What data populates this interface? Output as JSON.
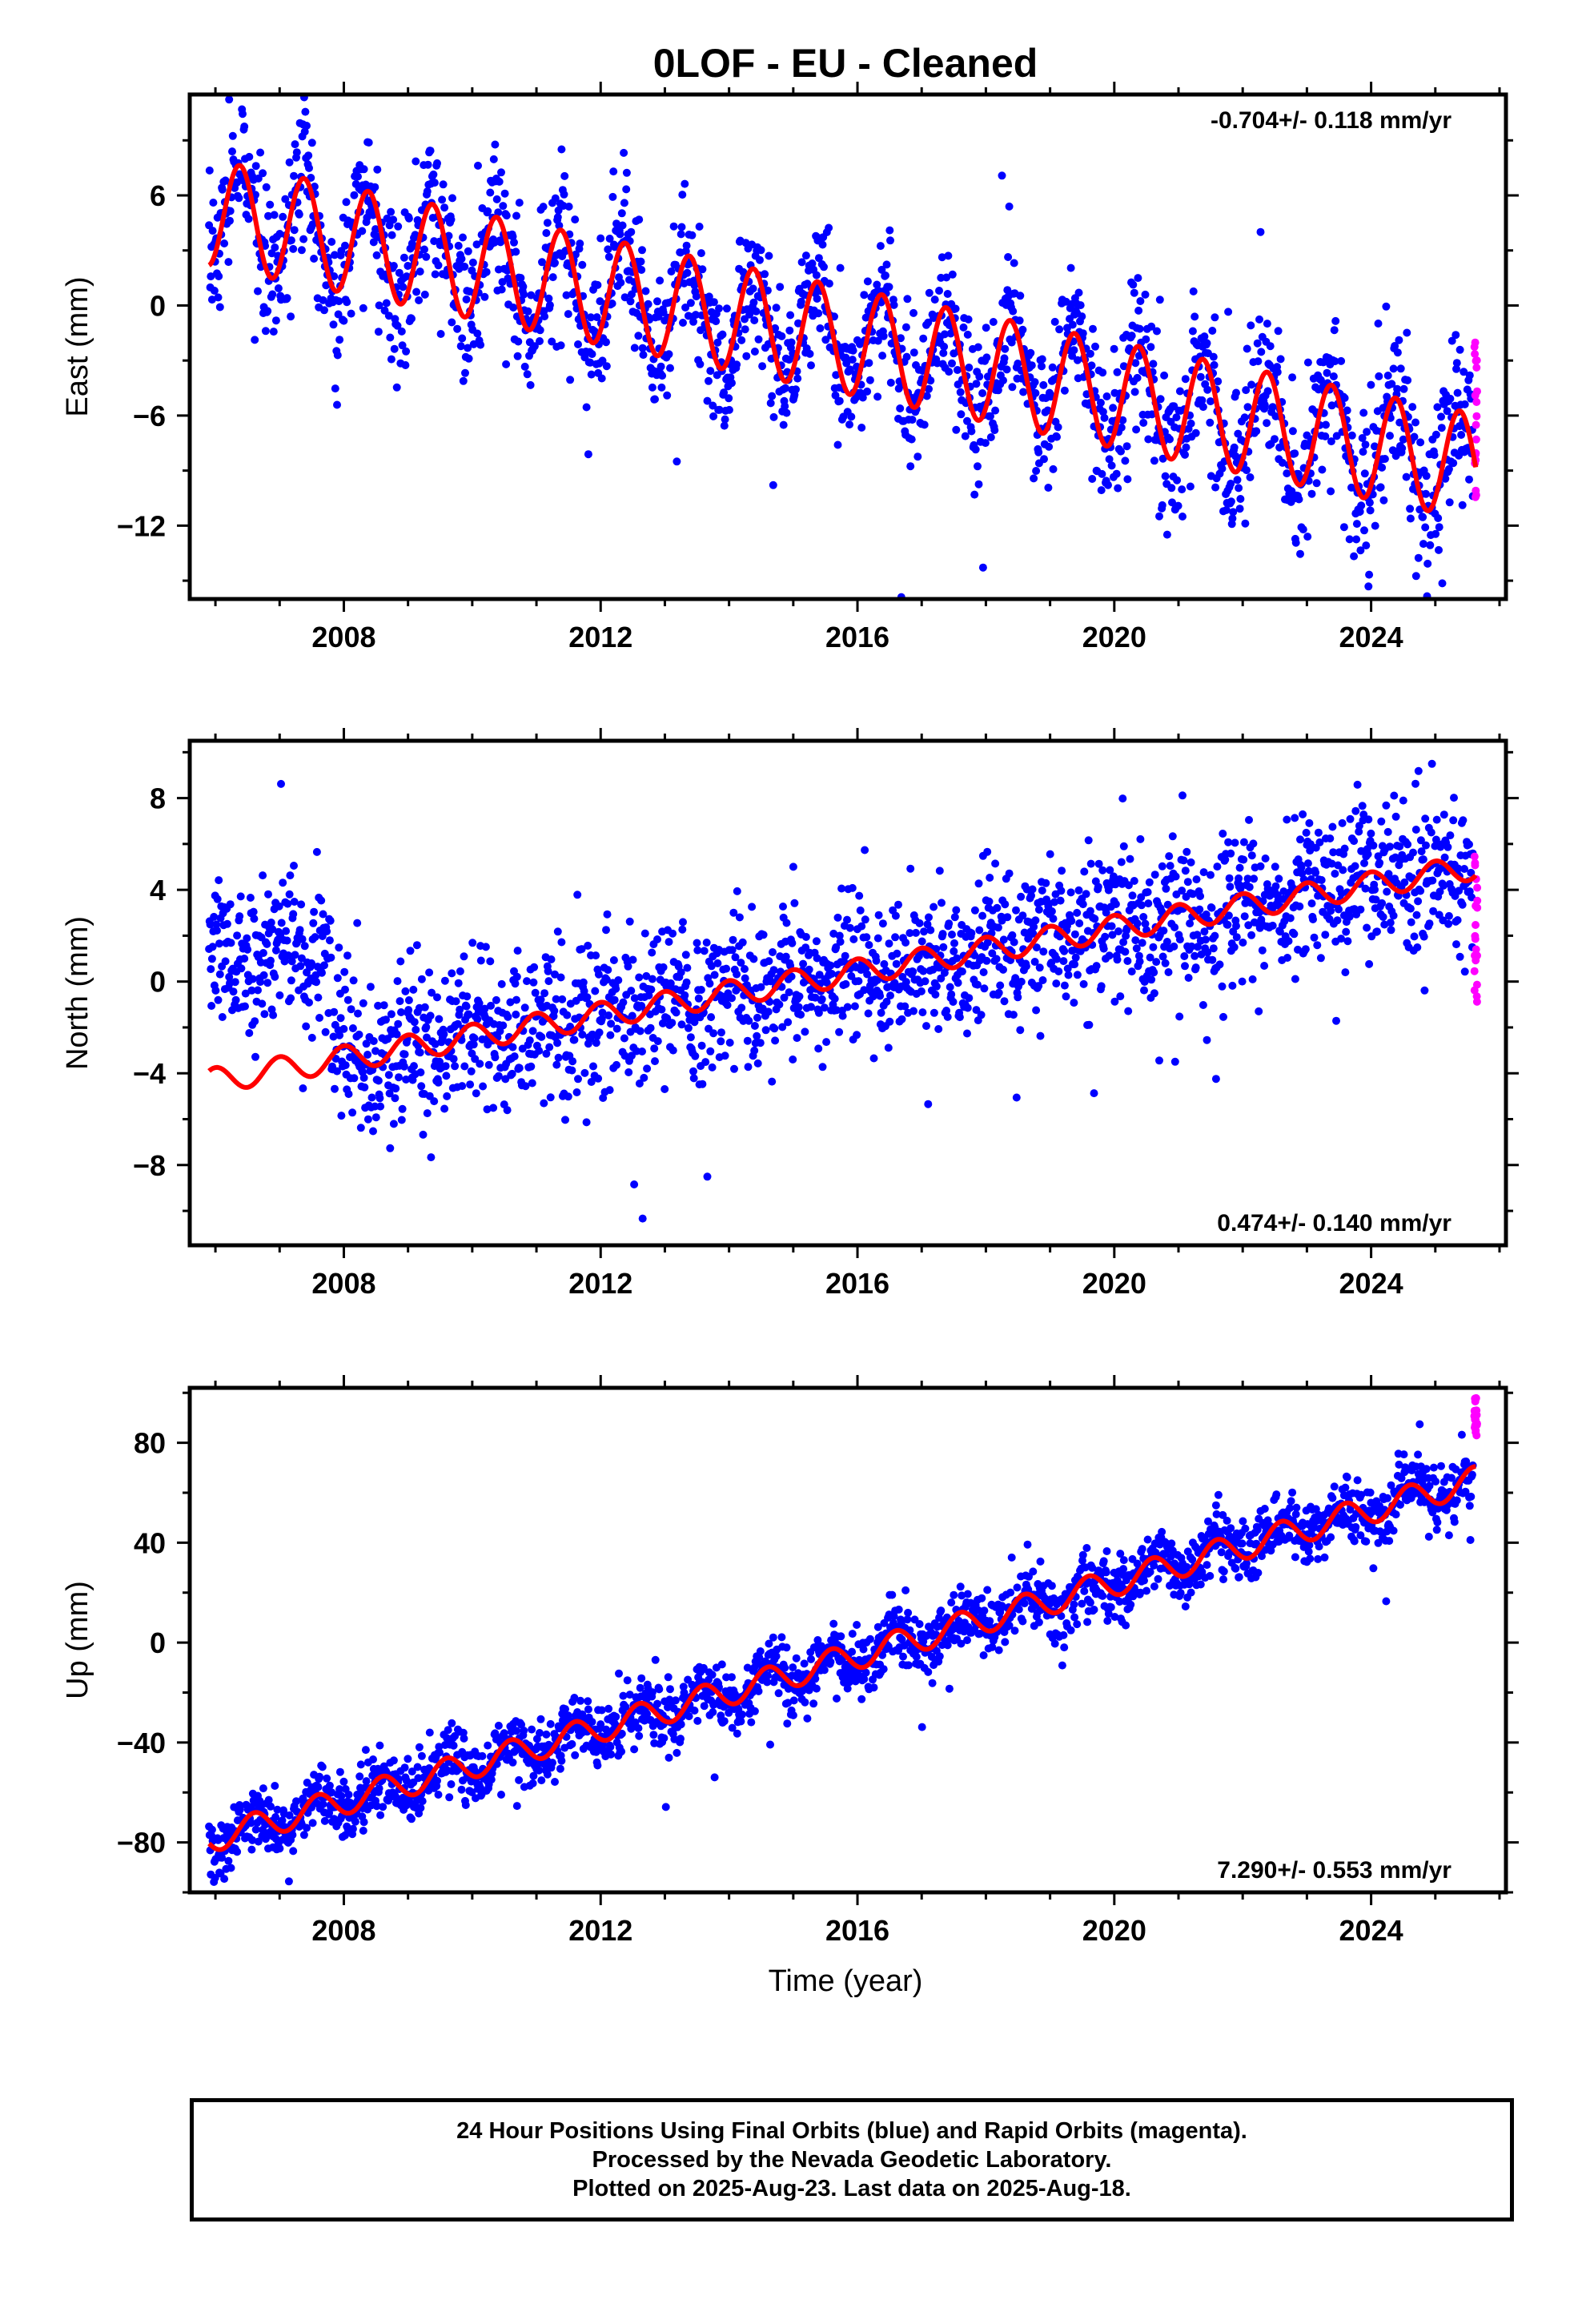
{
  "chart_data": {
    "type": "scatter",
    "title": "0LOF  - EU - Cleaned",
    "xlabel": "Time (year)",
    "x_range": [
      2005.6,
      2026.1
    ],
    "x_ticks": [
      "2008",
      "2012",
      "2016",
      "2020",
      "2024"
    ],
    "series_colors": {
      "final": "#0000ff",
      "rapid": "#ff00ff",
      "model": "#ff0000"
    },
    "panels": [
      {
        "ylabel": "East (mm)",
        "ylim": [
          -16,
          11.5
        ],
        "y_ticks": [
          "6",
          "0",
          "-6",
          "-12"
        ],
        "rate_label": "-0.704+/- 0.118 mm/yr",
        "rate_label_position": "top-right",
        "model": {
          "offset_at_2006": 5.0,
          "rate": -0.704,
          "annual_amplitude": 2.9,
          "phase_peak_fraction": 0.38,
          "semiannual_amplitude": 0.0,
          "scatter": 2.0,
          "step_year": null,
          "pre_step_offset": 0
        },
        "rapid_range": [
          -12,
          -2
        ]
      },
      {
        "ylabel": "North (mm)",
        "ylim": [
          -11.5,
          10.5
        ],
        "y_ticks": [
          "8",
          "4",
          "0",
          "-4",
          "-8"
        ],
        "rate_label": "0.474+/- 0.140 mm/yr",
        "rate_label_position": "bottom-right",
        "model": {
          "offset_at_2006": -4.3,
          "rate": 0.474,
          "annual_amplitude": 0.55,
          "phase_peak_fraction": 0.0,
          "semiannual_amplitude": 0.0,
          "scatter": 1.6,
          "step_year": 2007.8,
          "pre_step_offset": 5.0
        },
        "rapid_range": [
          -1,
          5.5
        ]
      },
      {
        "ylabel": "Up (mm)",
        "ylim": [
          -100,
          102
        ],
        "y_ticks": [
          "80",
          "40",
          "0",
          "-40",
          "-80"
        ],
        "rate_label": "7.290+/- 0.553 mm/yr",
        "rate_label_position": "bottom-right",
        "model": {
          "offset_at_2006": -78.0,
          "rate": 7.29,
          "annual_amplitude": 5.5,
          "phase_peak_fraction": 0.6,
          "semiannual_amplitude": 0.0,
          "scatter": 6.0,
          "step_year": null,
          "pre_step_offset": 0
        },
        "rapid_range": [
          82,
          98
        ]
      }
    ],
    "data_start": 2005.9,
    "data_end": 2025.63
  },
  "footer": {
    "line1": "24 Hour Positions Using Final Orbits (blue) and Rapid Orbits (magenta).",
    "line2": "Processed by the Nevada Geodetic Laboratory.",
    "line3": "Plotted on 2025-Aug-23. Last data on 2025-Aug-18."
  }
}
